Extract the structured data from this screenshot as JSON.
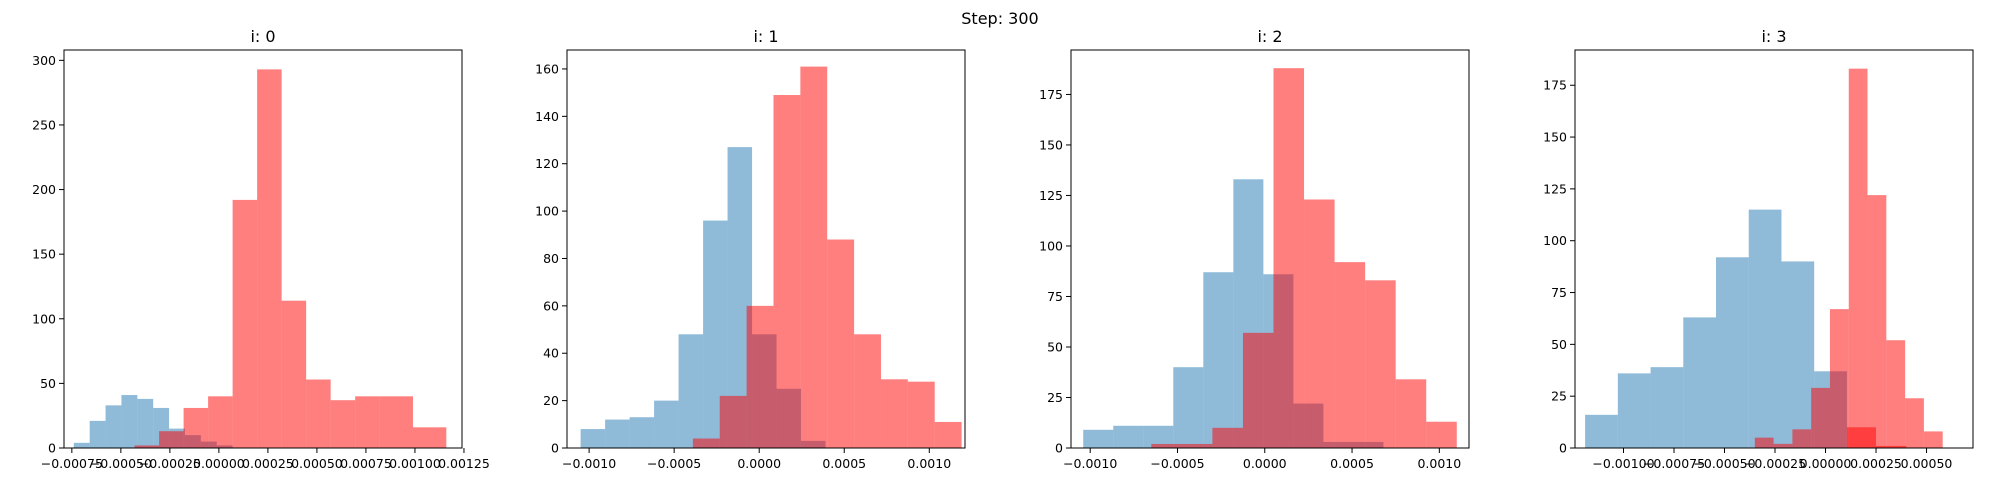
{
  "suptitle": "Step: 300",
  "colors": {
    "blue": "#1f77b4",
    "red": "#ff0000"
  },
  "chart_data": [
    {
      "type": "histogram",
      "title": "i: 0",
      "xlim": [
        -0.00079,
        0.00124
      ],
      "ylim": [
        0,
        308
      ],
      "xticks": [
        -0.00075,
        -0.0005,
        -0.00025,
        0,
        0.00025,
        0.0005,
        0.00075,
        0.001,
        0.00125
      ],
      "xtick_labels": [
        "−0.00075",
        "−0.00050",
        "−0.00025",
        "0.00000",
        "0.00025",
        "0.00050",
        "0.00075",
        "0.00100",
        "0.00125"
      ],
      "yticks": [
        0,
        50,
        100,
        150,
        200,
        250,
        300
      ],
      "ytick_labels": [
        "0",
        "50",
        "100",
        "150",
        "200",
        "250",
        "300"
      ],
      "series": [
        {
          "name": "blue",
          "color": "#1f77b4",
          "alpha": 0.5,
          "bin_edges": [
            -0.00074,
            -0.000659,
            -0.000578,
            -0.000497,
            -0.000416,
            -0.000335,
            -0.000254,
            -0.000173,
            -9.2e-05,
            -1.1e-05,
            7e-05
          ],
          "counts": [
            4,
            21,
            33,
            41,
            38,
            31,
            15,
            10,
            5,
            2
          ]
        },
        {
          "name": "red",
          "color": "#ff0000",
          "alpha": 0.5,
          "bin_edges": [
            -0.00043,
            -0.000305,
            -0.00018,
            -5.5e-05,
            7e-05,
            0.000195,
            0.00032,
            0.000445,
            0.00057,
            0.000695,
            0.00082
          ],
          "counts": [
            2,
            13,
            31,
            40,
            192,
            293,
            114,
            53,
            37,
            40
          ]
        },
        {
          "name": "red-tail",
          "color": "#ff0000",
          "alpha": 0.5,
          "bin_edges": [
            0.00082,
            0.00099,
            0.00116
          ],
          "counts": [
            40,
            16
          ]
        }
      ]
    },
    {
      "type": "histogram",
      "title": "i: 1",
      "xlim": [
        -0.00113,
        0.00121
      ],
      "ylim": [
        0,
        168
      ],
      "xticks": [
        -0.001,
        -0.0005,
        0,
        0.0005,
        0.001
      ],
      "xtick_labels": [
        "−0.0010",
        "−0.0005",
        "0.0000",
        "0.0005",
        "0.0010"
      ],
      "yticks": [
        0,
        20,
        40,
        60,
        80,
        100,
        120,
        140,
        160
      ],
      "ytick_labels": [
        "0",
        "20",
        "40",
        "60",
        "80",
        "100",
        "120",
        "140",
        "160"
      ],
      "series": [
        {
          "name": "blue",
          "color": "#1f77b4",
          "alpha": 0.5,
          "bin_edges": [
            -0.00105,
            -0.000906,
            -0.000762,
            -0.000618,
            -0.000474,
            -0.00033,
            -0.000186,
            -4.2e-05,
            0.000102,
            0.000246,
            0.00039
          ],
          "counts": [
            8,
            12,
            13,
            20,
            48,
            96,
            127,
            48,
            25,
            3
          ]
        },
        {
          "name": "red",
          "color": "#ff0000",
          "alpha": 0.5,
          "bin_edges": [
            -0.00039,
            -0.000232,
            -7.4e-05,
            8.4e-05,
            0.000242,
            0.0004,
            0.000558,
            0.000716,
            0.000874,
            0.001032,
            0.00119
          ],
          "counts": [
            4,
            22,
            60,
            149,
            161,
            88,
            48,
            29,
            28,
            11
          ]
        }
      ]
    },
    {
      "type": "histogram",
      "title": "i: 2",
      "xlim": [
        -0.00111,
        0.00117
      ],
      "ylim": [
        0,
        197
      ],
      "xticks": [
        -0.001,
        -0.0005,
        0,
        0.0005,
        0.001
      ],
      "xtick_labels": [
        "−0.0010",
        "−0.0005",
        "0.0000",
        "0.0005",
        "0.0010"
      ],
      "yticks": [
        0,
        25,
        50,
        75,
        100,
        125,
        150,
        175
      ],
      "ytick_labels": [
        "0",
        "25",
        "50",
        "75",
        "100",
        "125",
        "150",
        "175"
      ],
      "series": [
        {
          "name": "blue",
          "color": "#1f77b4",
          "alpha": 0.5,
          "bin_edges": [
            -0.00104,
            -0.000868,
            -0.000696,
            -0.000524,
            -0.000352,
            -0.00018,
            -8e-06,
            0.000164,
            0.000336,
            0.000508,
            0.00068
          ],
          "counts": [
            9,
            11,
            11,
            40,
            87,
            133,
            86,
            22,
            3,
            3
          ]
        },
        {
          "name": "red",
          "color": "#ff0000",
          "alpha": 0.5,
          "bin_edges": [
            -0.00065,
            -0.000475,
            -0.0003,
            -0.000125,
            5e-05,
            0.000225,
            0.0004,
            0.000575,
            0.00075,
            0.000925,
            0.0011
          ],
          "counts": [
            2,
            2,
            10,
            57,
            188,
            123,
            92,
            83,
            34,
            13
          ]
        }
      ]
    },
    {
      "type": "histogram",
      "title": "i: 3",
      "xlim": [
        -0.00124,
        0.00073
      ],
      "ylim": [
        0,
        192
      ],
      "xticks": [
        -0.001,
        -0.00075,
        -0.0005,
        -0.00025,
        0,
        0.00025,
        0.0005
      ],
      "xtick_labels": [
        "−0.00100",
        "−0.00075",
        "−0.00050",
        "−0.00025",
        "0.00000",
        "0.00025",
        "0.00050"
      ],
      "yticks": [
        0,
        25,
        50,
        75,
        100,
        125,
        150,
        175
      ],
      "ytick_labels": [
        "0",
        "25",
        "50",
        "75",
        "100",
        "125",
        "150",
        "175"
      ],
      "series": [
        {
          "name": "blue",
          "color": "#1f77b4",
          "alpha": 0.5,
          "bin_edges": [
            -0.00119,
            -0.001028,
            -0.000866,
            -0.000704,
            -0.000542,
            -0.00038,
            -0.000218,
            -5.6e-05,
            0.000106
          ],
          "counts": [
            16,
            36,
            39,
            63,
            92,
            115,
            90,
            37
          ]
        },
        {
          "name": "red",
          "color": "#ff0000",
          "alpha": 0.5,
          "bin_edges": [
            -0.00035,
            -0.000257,
            -0.000164,
            -7.1e-05,
            2.2e-05,
            0.000115,
            0.000208,
            0.000301,
            0.000394,
            0.000487,
            0.00058,
            0.000673
          ],
          "counts": [
            5,
            2,
            9,
            29,
            67,
            183,
            122,
            52,
            24,
            8,
            0
          ]
        },
        {
          "name": "red-small",
          "color": "#ff0000",
          "alpha": 0.5,
          "bin_edges": [
            0.000106,
            0.00025,
            0.0004
          ],
          "counts": [
            10,
            1
          ]
        }
      ]
    }
  ]
}
